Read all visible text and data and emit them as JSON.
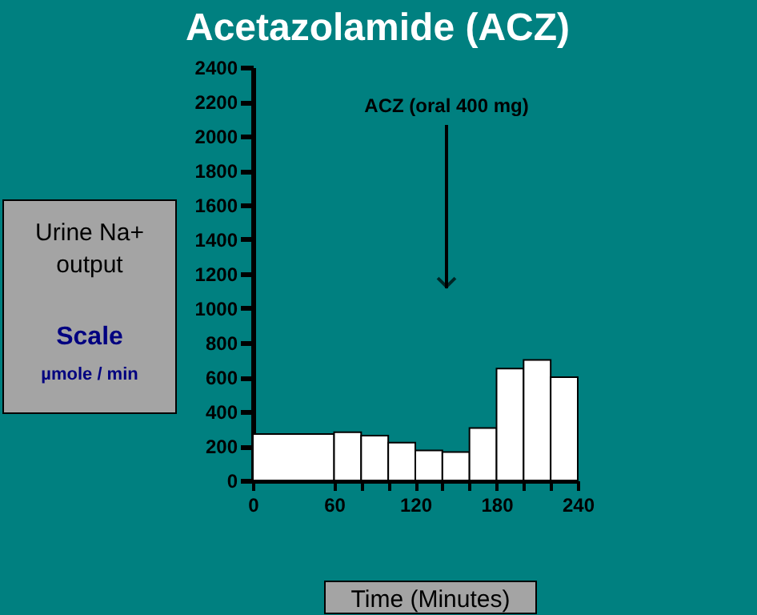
{
  "chart_data": {
    "type": "histogram",
    "title": "Acetazolamide (ACZ)",
    "xlabel": "Time (Minutes)",
    "ylabel": "Urine Na+ output",
    "bins": [
      0,
      60,
      80,
      100,
      120,
      140,
      160,
      180,
      200,
      220,
      240
    ],
    "values": [
      270,
      280,
      260,
      220,
      175,
      165,
      305,
      650,
      700,
      600
    ],
    "color": "#ffffff",
    "xlim": [
      0,
      240
    ],
    "xticks": [
      0,
      60,
      {
        "value": 80,
        "label": null
      },
      {
        "value": 100,
        "label": null
      },
      120,
      {
        "value": 140,
        "label": null
      },
      {
        "value": 160,
        "label": null
      },
      180,
      {
        "value": 200,
        "label": null
      },
      {
        "value": 220,
        "label": null
      },
      240
    ],
    "ylim": [
      0,
      2400
    ],
    "yticks": [
      0,
      200,
      400,
      600,
      800,
      1000,
      1200,
      1400,
      1600,
      1800,
      2000,
      2200,
      2400
    ],
    "grid": false,
    "annotations": [
      "ACZ (oral 400 mg)",
      "Scale",
      "µmole / min"
    ]
  }
}
